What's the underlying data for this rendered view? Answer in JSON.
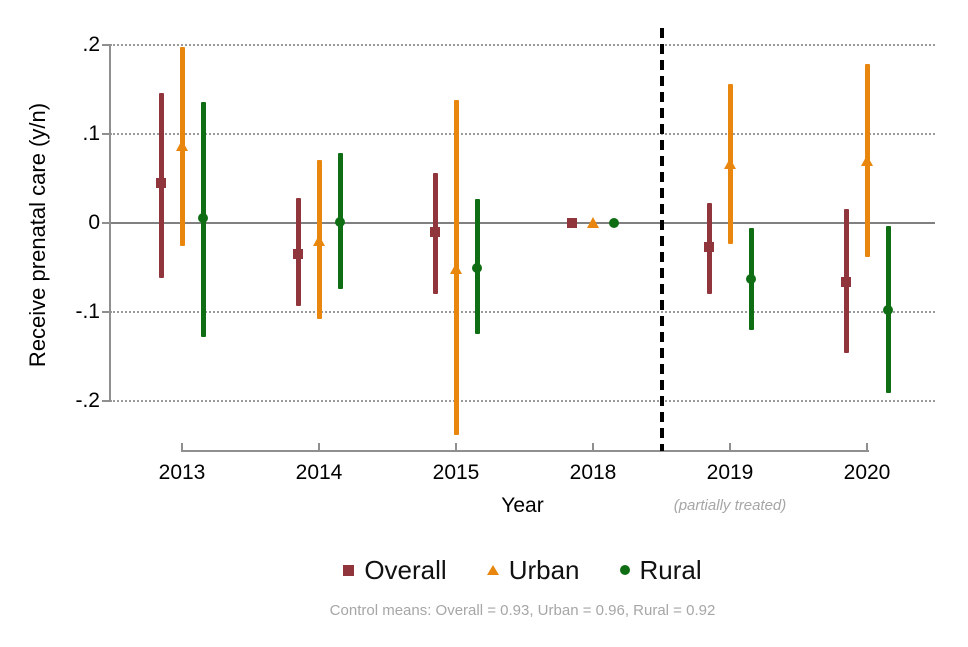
{
  "chart_data": {
    "type": "scatter",
    "subtype": "event-study coefficient plot with 95% confidence intervals",
    "title": "",
    "ylabel": "Receive prenatal care (y/n)",
    "xlabel": "Year",
    "xlabel_note": "(partially treated)",
    "categories": [
      "2013",
      "2014",
      "2015",
      "2018",
      "2019",
      "2020"
    ],
    "y_ticks": [
      {
        "label": ".2",
        "value": 0.2
      },
      {
        "label": ".1",
        "value": 0.1
      },
      {
        "label": "0",
        "value": 0
      },
      {
        "label": "-.1",
        "value": -0.1
      },
      {
        "label": "-.2",
        "value": -0.2
      }
    ],
    "ylim": [
      -0.25,
      0.22
    ],
    "grid": "dotted horizontal lines at y ticks, solid line at zero",
    "legend_position": "bottom",
    "reference_year": "2018",
    "treatment_divider_between": [
      "2018",
      "2019"
    ],
    "series": [
      {
        "name": "Overall",
        "marker": "square",
        "color": "#90353B",
        "points": [
          {
            "year": "2013",
            "est": 0.044,
            "lo": -0.062,
            "hi": 0.146
          },
          {
            "year": "2014",
            "est": -0.035,
            "lo": -0.094,
            "hi": 0.027
          },
          {
            "year": "2015",
            "est": -0.011,
            "lo": -0.08,
            "hi": 0.056
          },
          {
            "year": "2018",
            "est": 0,
            "lo": 0,
            "hi": 0
          },
          {
            "year": "2019",
            "est": -0.028,
            "lo": -0.08,
            "hi": 0.022
          },
          {
            "year": "2020",
            "est": -0.067,
            "lo": -0.147,
            "hi": 0.015
          }
        ]
      },
      {
        "name": "Urban",
        "marker": "triangle",
        "color": "#E8860D",
        "points": [
          {
            "year": "2013",
            "est": 0.086,
            "lo": -0.026,
            "hi": 0.197
          },
          {
            "year": "2014",
            "est": -0.02,
            "lo": -0.109,
            "hi": 0.07
          },
          {
            "year": "2015",
            "est": -0.052,
            "lo": -0.239,
            "hi": 0.138
          },
          {
            "year": "2018",
            "est": 0,
            "lo": 0,
            "hi": 0
          },
          {
            "year": "2019",
            "est": 0.066,
            "lo": -0.024,
            "hi": 0.156
          },
          {
            "year": "2020",
            "est": 0.07,
            "lo": -0.039,
            "hi": 0.178
          }
        ]
      },
      {
        "name": "Rural",
        "marker": "circle",
        "color": "#0F6E14",
        "points": [
          {
            "year": "2013",
            "est": 0.005,
            "lo": -0.129,
            "hi": 0.135
          },
          {
            "year": "2014",
            "est": 0.001,
            "lo": -0.075,
            "hi": 0.078
          },
          {
            "year": "2015",
            "est": -0.051,
            "lo": -0.125,
            "hi": 0.026
          },
          {
            "year": "2018",
            "est": 0,
            "lo": 0,
            "hi": 0
          },
          {
            "year": "2019",
            "est": -0.063,
            "lo": -0.121,
            "hi": -0.006
          },
          {
            "year": "2020",
            "est": -0.098,
            "lo": -0.192,
            "hi": -0.004
          }
        ]
      }
    ],
    "footnote": "Control means: Overall = 0.93, Urban = 0.96, Rural = 0.92",
    "colors": {
      "axis": "#8F8F8F",
      "grid": "#9A9A9A",
      "zero_line": "#808080",
      "divider": "#000000",
      "label_text": "#000000",
      "muted_text": "#A6A6A6"
    }
  }
}
